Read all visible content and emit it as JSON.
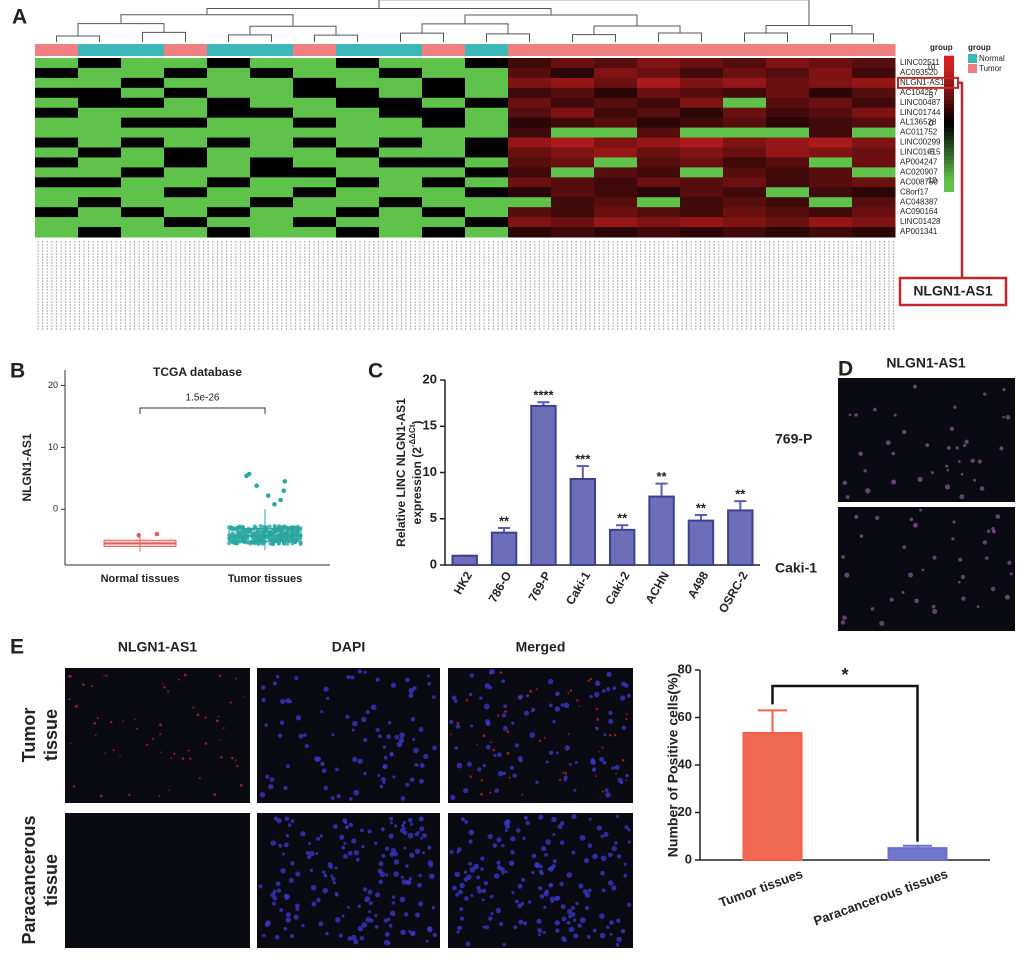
{
  "panel_labels": [
    "A",
    "B",
    "C",
    "D",
    "E"
  ],
  "chart_data": [
    {
      "type": "heatmap",
      "rows": [
        "LINC02511",
        "AC093520",
        "NLGN1-AS1",
        "AC104257",
        "LINC00487",
        "LINC01744",
        "AL136528",
        "AC011752",
        "LINC00299",
        "LINC01615",
        "AP004247",
        "AC020907",
        "AC008750",
        "C8orf17",
        "AC048387",
        "AC090164",
        "LINC01428",
        "AP001341"
      ],
      "groups": [
        "Tumor",
        "Normal",
        "Normal",
        "Tumor",
        "Normal",
        "Normal",
        "Tumor",
        "Normal",
        "Normal",
        "Tumor",
        "Normal",
        "Tumor",
        "Tumor",
        "Tumor",
        "Tumor",
        "Tumor",
        "Tumor",
        "Tumor",
        "Tumor",
        "Tumor"
      ],
      "values": [
        [
          -10,
          0,
          -10,
          -10,
          0,
          -10,
          -10,
          0,
          -10,
          -10,
          0,
          3,
          5,
          4,
          6,
          5,
          4,
          6,
          5,
          4
        ],
        [
          0,
          -10,
          -10,
          0,
          -10,
          0,
          -10,
          -10,
          0,
          -10,
          -10,
          4,
          2,
          6,
          5,
          3,
          5,
          4,
          6,
          3
        ],
        [
          -10,
          -10,
          0,
          -10,
          -10,
          -10,
          0,
          -10,
          -10,
          0,
          -10,
          6,
          7,
          5,
          8,
          6,
          7,
          5,
          6,
          7
        ],
        [
          0,
          0,
          -10,
          0,
          -10,
          -10,
          0,
          0,
          -10,
          0,
          -10,
          3,
          4,
          2,
          5,
          4,
          3,
          5,
          2,
          4
        ],
        [
          -10,
          0,
          0,
          -10,
          0,
          -10,
          -10,
          0,
          0,
          -10,
          0,
          5,
          3,
          4,
          3,
          6,
          -10,
          4,
          5,
          3
        ],
        [
          0,
          -10,
          -10,
          -10,
          0,
          0,
          -10,
          -10,
          0,
          0,
          -10,
          4,
          6,
          3,
          4,
          2,
          5,
          3,
          4,
          6
        ],
        [
          -10,
          -10,
          0,
          0,
          -10,
          -10,
          0,
          -10,
          -10,
          0,
          -10,
          2,
          3,
          4,
          2,
          3,
          4,
          2,
          3,
          4
        ],
        [
          -10,
          -10,
          -10,
          -10,
          -10,
          -10,
          -10,
          -10,
          -10,
          -10,
          -10,
          3,
          -10,
          -10,
          4,
          -10,
          -10,
          -10,
          3,
          -10
        ],
        [
          0,
          -10,
          0,
          -10,
          0,
          -10,
          0,
          -10,
          0,
          -10,
          0,
          7,
          8,
          6,
          7,
          8,
          6,
          7,
          8,
          6
        ],
        [
          -10,
          0,
          -10,
          0,
          -10,
          -10,
          -10,
          0,
          -10,
          -10,
          0,
          5,
          6,
          7,
          5,
          6,
          5,
          7,
          6,
          5
        ],
        [
          0,
          -10,
          -10,
          0,
          -10,
          0,
          -10,
          -10,
          0,
          0,
          -10,
          4,
          5,
          -10,
          4,
          5,
          3,
          4,
          -10,
          5
        ],
        [
          -10,
          -10,
          0,
          -10,
          -10,
          0,
          0,
          -10,
          -10,
          -10,
          0,
          3,
          -10,
          4,
          3,
          -10,
          4,
          3,
          4,
          -10
        ],
        [
          0,
          0,
          -10,
          -10,
          0,
          -10,
          -10,
          0,
          -10,
          0,
          -10,
          5,
          4,
          3,
          5,
          4,
          5,
          3,
          4,
          5
        ],
        [
          -10,
          -10,
          -10,
          0,
          -10,
          -10,
          0,
          -10,
          -10,
          -10,
          0,
          2,
          4,
          3,
          2,
          4,
          3,
          -10,
          3,
          2
        ],
        [
          -10,
          0,
          -10,
          -10,
          -10,
          0,
          -10,
          -10,
          0,
          -10,
          -10,
          -10,
          3,
          4,
          -10,
          3,
          4,
          3,
          -10,
          4
        ],
        [
          0,
          -10,
          0,
          -10,
          0,
          -10,
          -10,
          0,
          -10,
          0,
          -10,
          4,
          3,
          5,
          4,
          3,
          5,
          4,
          3,
          5
        ],
        [
          -10,
          -10,
          -10,
          0,
          -10,
          -10,
          0,
          -10,
          -10,
          -10,
          0,
          6,
          5,
          7,
          6,
          7,
          6,
          5,
          7,
          6
        ],
        [
          -10,
          0,
          -10,
          -10,
          0,
          -10,
          -10,
          0,
          -10,
          0,
          -10,
          2,
          3,
          2,
          3,
          2,
          3,
          2,
          3,
          2
        ]
      ],
      "legend_title": "group",
      "group_names": [
        "Normal",
        "Tumor"
      ],
      "group_colors": [
        "#3cb8b8",
        "#f08080"
      ],
      "colorbar_lim": [
        -12,
        12
      ],
      "colorbar_ticks": [
        10,
        5,
        0,
        -5,
        -10
      ],
      "low_color": "#5fc24a",
      "high_color": "#d42020",
      "annotation": "NLGN1-AS1"
    },
    {
      "type": "box",
      "title": "TCGA database",
      "ylabel": "NLGN1-AS1",
      "pvalue": "1.5e-26",
      "categories": [
        "Normal tissues",
        "Tumor tissues"
      ],
      "colors": [
        "#e06060",
        "#2aa6a0"
      ],
      "whisker_low": [
        -6.8,
        -6.6
      ],
      "q1": [
        -6,
        -5.2
      ],
      "median": [
        -5.5,
        -4.3
      ],
      "q3": [
        -5,
        -3.1
      ],
      "whisker_high": [
        -4.4,
        0
      ],
      "outliers": [
        [
          -4.2,
          -4.0
        ],
        [
          0.8,
          1.5,
          2.2,
          3,
          3.8,
          4.5,
          5.4,
          5.7
        ]
      ],
      "ylim": [
        -9,
        22.5
      ],
      "yticks": [
        0,
        10,
        20
      ]
    },
    {
      "type": "bar",
      "ylabel": "Relative LINC NLGN1-AS1",
      "ylabel2": "expression (2",
      "ylabel_sup": "-ΔΔCt",
      "ylabel_end": ")",
      "categories": [
        "HK2",
        "786-O",
        "769-P",
        "Caki-1",
        "Caki-2",
        "ACHN",
        "A498",
        "OSRC-2"
      ],
      "values": [
        1,
        3.5,
        17.2,
        9.3,
        3.8,
        7.4,
        4.8,
        5.9
      ],
      "errors": [
        0,
        0.5,
        0.4,
        1.4,
        0.5,
        1.4,
        0.6,
        1.0
      ],
      "value_labels": [
        null,
        "**",
        "****",
        "***",
        "**",
        "**",
        "**",
        "**"
      ],
      "color": "#5a5fb0",
      "ylim": [
        0,
        20
      ],
      "yticks": [
        0,
        5,
        10,
        15,
        20
      ]
    },
    {
      "type": "bar",
      "ylabel": "Number of Positive cells(%)",
      "categories": [
        "Tumor tissues",
        "Paracancerous tissues"
      ],
      "values": [
        53.5,
        5
      ],
      "errors": [
        9.5,
        1
      ],
      "colors": [
        "#f0604a",
        "#6a70c8"
      ],
      "significance": "*",
      "ylim": [
        0,
        80
      ],
      "yticks": [
        0,
        20,
        40,
        60,
        80
      ]
    }
  ],
  "panel_d": {
    "title": "NLGN1-AS1",
    "rows": [
      "769-P",
      "Caki-1"
    ]
  },
  "panel_e": {
    "columns": [
      "NLGN1-AS1",
      "DAPI",
      "Merged"
    ],
    "rows": [
      [
        "Tumor",
        "tissue"
      ],
      [
        "Paracancerous",
        "tissue"
      ]
    ]
  }
}
